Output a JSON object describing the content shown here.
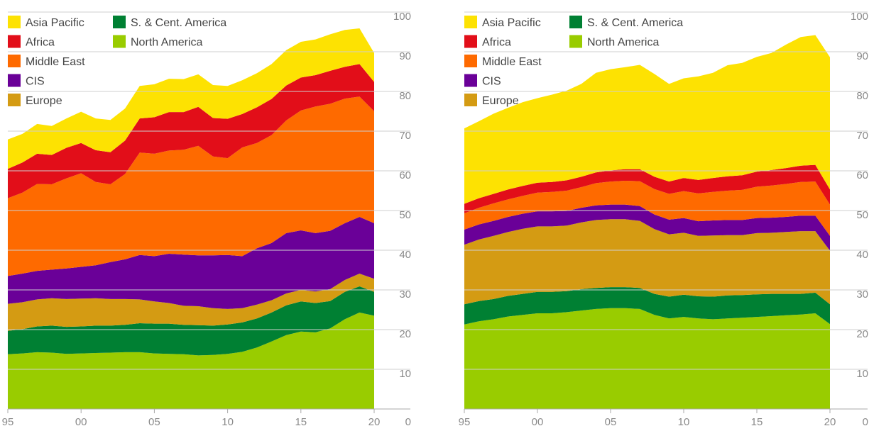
{
  "chart_data": [
    {
      "type": "area",
      "stacked": true,
      "x": [
        1995,
        1996,
        1997,
        1998,
        1999,
        2000,
        2001,
        2002,
        2003,
        2004,
        2005,
        2006,
        2007,
        2008,
        2009,
        2010,
        2011,
        2012,
        2013,
        2014,
        2015,
        2016,
        2017,
        2018,
        2019,
        2020
      ],
      "x_tick_labels": [
        "95",
        "00",
        "05",
        "10",
        "15",
        "20"
      ],
      "x_tick_values": [
        1995,
        2000,
        2005,
        2010,
        2015,
        2020
      ],
      "ylim": [
        0,
        100
      ],
      "y_ticks": [
        0,
        10,
        20,
        30,
        40,
        50,
        60,
        70,
        80,
        90,
        100
      ],
      "grid": true,
      "legend_placement": "top-left",
      "series": [
        {
          "name": "North America",
          "color": "#99cc00",
          "values": [
            13.8,
            14.0,
            14.3,
            14.2,
            13.9,
            14.0,
            14.1,
            14.2,
            14.3,
            14.3,
            14.0,
            13.9,
            13.8,
            13.5,
            13.6,
            13.9,
            14.4,
            15.5,
            17.0,
            18.6,
            19.5,
            19.3,
            20.3,
            22.6,
            24.3,
            23.5
          ]
        },
        {
          "name": "S. & Cent. America",
          "color": "#008033",
          "values": [
            5.9,
            6.1,
            6.5,
            6.8,
            6.8,
            6.8,
            6.9,
            6.8,
            6.9,
            7.3,
            7.5,
            7.6,
            7.4,
            7.6,
            7.4,
            7.4,
            7.4,
            7.3,
            7.3,
            7.5,
            7.6,
            7.4,
            6.9,
            6.9,
            6.6,
            6.0
          ]
        },
        {
          "name": "Europe",
          "color": "#d49b13",
          "values": [
            6.8,
            6.8,
            6.8,
            6.9,
            7.0,
            7.0,
            6.9,
            6.7,
            6.5,
            6.0,
            5.6,
            5.2,
            4.8,
            4.8,
            4.4,
            3.9,
            3.6,
            3.5,
            3.1,
            3.0,
            2.9,
            2.9,
            3.0,
            3.0,
            3.2,
            3.3
          ]
        },
        {
          "name": "CIS",
          "color": "#6a0098",
          "values": [
            7.0,
            7.2,
            7.2,
            7.2,
            7.7,
            8.0,
            8.3,
            9.3,
            10.0,
            11.2,
            11.4,
            12.4,
            12.9,
            12.8,
            13.3,
            13.6,
            13.1,
            14.2,
            14.4,
            15.2,
            15.0,
            14.7,
            14.7,
            14.3,
            14.3,
            14.0
          ]
        },
        {
          "name": "Middle East",
          "color": "#fe6a00",
          "values": [
            19.6,
            20.4,
            21.9,
            21.5,
            22.7,
            23.6,
            21.0,
            19.6,
            21.5,
            25.8,
            25.8,
            26.0,
            26.4,
            27.6,
            24.9,
            24.4,
            27.4,
            26.5,
            27.2,
            28.4,
            30.2,
            31.9,
            32.0,
            31.4,
            30.3,
            28.2
          ]
        },
        {
          "name": "Africa",
          "color": "#e20e19",
          "values": [
            7.4,
            7.6,
            7.6,
            7.4,
            7.7,
            7.6,
            8.0,
            8.1,
            8.4,
            8.6,
            9.2,
            9.7,
            9.5,
            9.8,
            9.7,
            9.9,
            8.4,
            9.0,
            9.1,
            8.8,
            8.3,
            7.9,
            8.3,
            8.0,
            8.2,
            7.4
          ]
        },
        {
          "name": "Asia Pacific",
          "color": "#fde202",
          "values": [
            7.4,
            7.2,
            7.5,
            7.3,
            7.4,
            7.9,
            8.0,
            8.1,
            8.1,
            8.2,
            8.3,
            8.4,
            8.3,
            8.2,
            8.3,
            8.3,
            8.5,
            8.6,
            8.8,
            8.9,
            9.0,
            9.0,
            9.2,
            9.3,
            9.0,
            7.3
          ]
        }
      ]
    },
    {
      "type": "area",
      "stacked": true,
      "x": [
        1995,
        1996,
        1997,
        1998,
        1999,
        2000,
        2001,
        2002,
        2003,
        2004,
        2005,
        2006,
        2007,
        2008,
        2009,
        2010,
        2011,
        2012,
        2013,
        2014,
        2015,
        2016,
        2017,
        2018,
        2019,
        2020
      ],
      "x_tick_labels": [
        "95",
        "00",
        "05",
        "10",
        "15",
        "20"
      ],
      "x_tick_values": [
        1995,
        2000,
        2005,
        2010,
        2015,
        2020
      ],
      "ylim": [
        0,
        100
      ],
      "y_ticks": [
        0,
        10,
        20,
        30,
        40,
        50,
        60,
        70,
        80,
        90,
        100
      ],
      "grid": true,
      "legend_placement": "top-left",
      "series": [
        {
          "name": "North America",
          "color": "#99cc00",
          "values": [
            21.3,
            22.1,
            22.6,
            23.3,
            23.7,
            24.1,
            24.1,
            24.4,
            24.8,
            25.2,
            25.4,
            25.4,
            25.2,
            23.7,
            22.8,
            23.2,
            22.8,
            22.6,
            22.8,
            23.0,
            23.2,
            23.4,
            23.6,
            23.8,
            24.1,
            21.4
          ]
        },
        {
          "name": "S. & Cent. America",
          "color": "#008033",
          "values": [
            5.1,
            5.1,
            5.1,
            5.2,
            5.3,
            5.4,
            5.4,
            5.3,
            5.4,
            5.3,
            5.3,
            5.3,
            5.3,
            5.3,
            5.5,
            5.6,
            5.6,
            5.7,
            5.8,
            5.7,
            5.7,
            5.6,
            5.4,
            5.2,
            5.2,
            5.0
          ]
        },
        {
          "name": "Europe",
          "color": "#d49b13",
          "values": [
            15.0,
            15.5,
            15.9,
            16.1,
            16.4,
            16.5,
            16.5,
            16.5,
            16.8,
            17.1,
            17.1,
            17.1,
            16.9,
            16.3,
            15.7,
            15.6,
            15.2,
            15.4,
            15.2,
            15.1,
            15.4,
            15.4,
            15.6,
            15.8,
            15.5,
            13.5
          ]
        },
        {
          "name": "CIS",
          "color": "#6a0098",
          "values": [
            3.8,
            3.8,
            3.8,
            3.8,
            3.8,
            3.8,
            3.8,
            3.7,
            3.7,
            3.7,
            3.7,
            3.7,
            3.7,
            3.7,
            3.7,
            3.7,
            3.7,
            3.8,
            3.8,
            3.8,
            3.8,
            3.8,
            3.8,
            3.9,
            3.9,
            3.7
          ]
        },
        {
          "name": "Middle East",
          "color": "#fe6a00",
          "values": [
            4.1,
            4.2,
            4.4,
            4.4,
            4.5,
            4.7,
            4.9,
            5.1,
            5.2,
            5.6,
            5.8,
            6.0,
            6.3,
            6.4,
            6.5,
            6.8,
            7.0,
            7.2,
            7.4,
            7.6,
            7.9,
            8.1,
            8.3,
            8.5,
            8.6,
            7.9
          ]
        },
        {
          "name": "Africa",
          "color": "#e20e19",
          "values": [
            2.4,
            2.4,
            2.4,
            2.5,
            2.5,
            2.5,
            2.5,
            2.6,
            2.6,
            2.7,
            2.8,
            2.9,
            3.0,
            3.1,
            3.1,
            3.3,
            3.4,
            3.5,
            3.6,
            3.7,
            3.8,
            3.9,
            4.0,
            4.1,
            4.2,
            3.8
          ]
        },
        {
          "name": "Asia Pacific",
          "color": "#fde202",
          "values": [
            19.0,
            19.4,
            20.2,
            20.6,
            21.1,
            21.3,
            22.0,
            22.6,
            23.4,
            25.1,
            25.5,
            25.7,
            26.3,
            25.9,
            24.6,
            25.1,
            26.1,
            26.5,
            28.0,
            28.3,
            28.9,
            29.5,
            31.1,
            32.4,
            32.7,
            33.3
          ]
        }
      ]
    }
  ],
  "legend": {
    "col1": [
      "Asia Pacific",
      "Africa",
      "Middle East",
      "CIS",
      "Europe"
    ],
    "col2": [
      "S. & Cent. America",
      "North America"
    ]
  }
}
